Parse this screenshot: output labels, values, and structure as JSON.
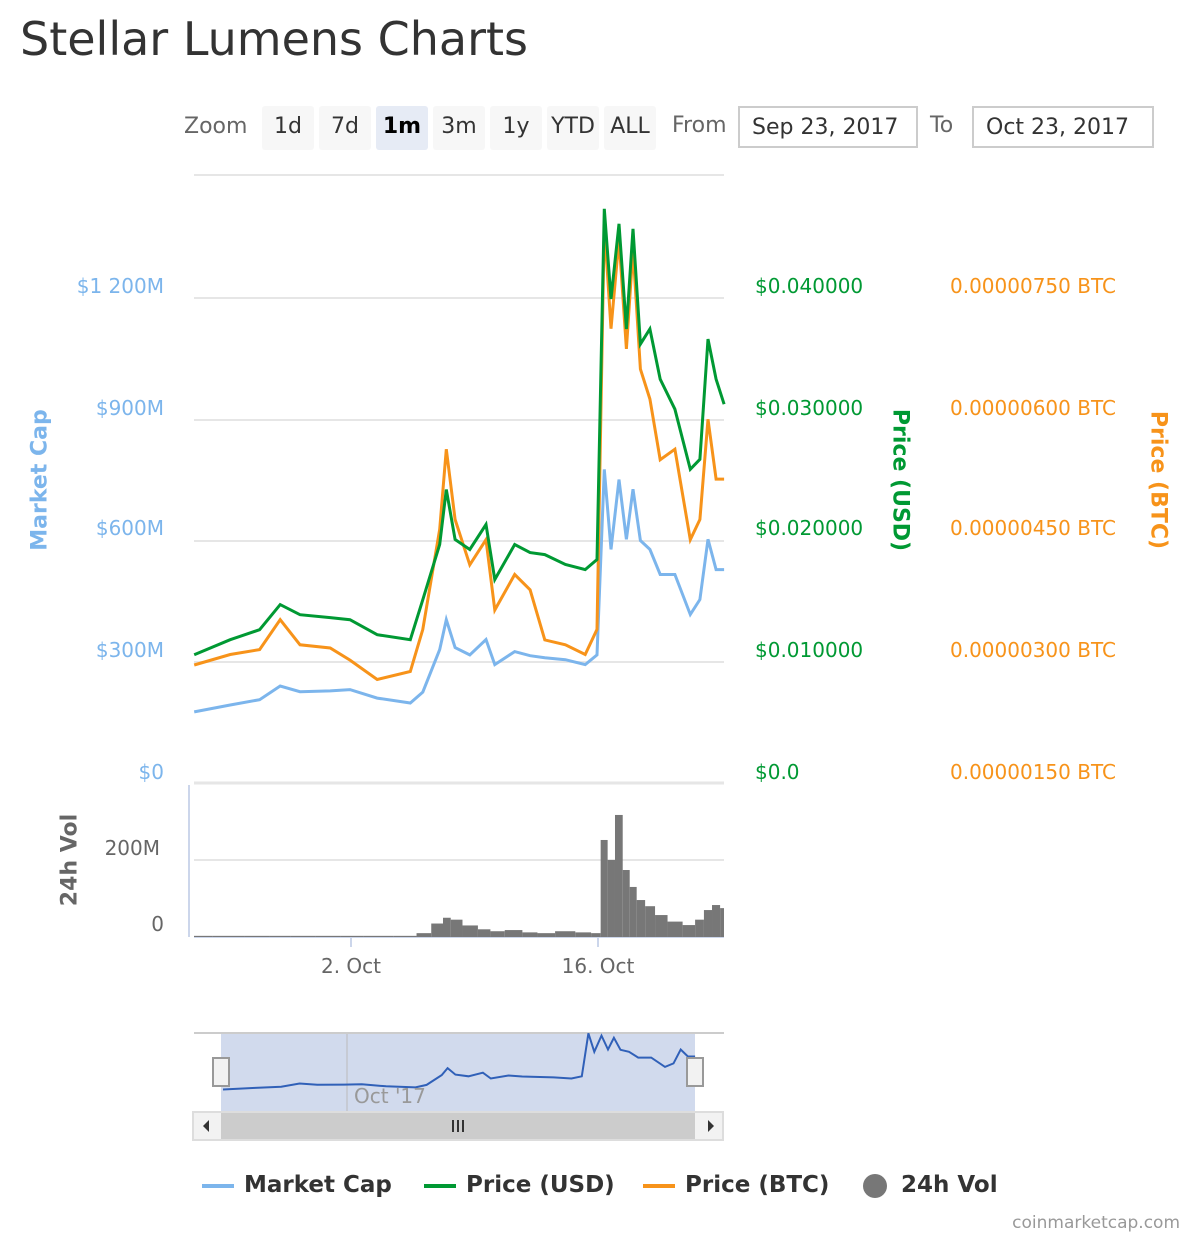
{
  "title": "Stellar Lumens Charts",
  "zoom": {
    "label": "Zoom",
    "buttons": [
      "1d",
      "7d",
      "1m",
      "3m",
      "1y",
      "YTD",
      "ALL"
    ],
    "selected": "1m"
  },
  "range": {
    "from_label": "From",
    "from": "Sep 23, 2017",
    "to_label": "To",
    "to": "Oct 23, 2017"
  },
  "axes": {
    "market_cap": {
      "title": "Market Cap",
      "ticks": [
        "$0",
        "$300M",
        "$600M",
        "$900M",
        "$1 200M"
      ],
      "color": "#7cb5ec"
    },
    "price_usd": {
      "title": "Price (USD)",
      "ticks": [
        "$0.0",
        "$0.010000",
        "$0.020000",
        "$0.030000",
        "$0.040000"
      ],
      "color": "#009933"
    },
    "price_btc": {
      "title": "Price (BTC)",
      "ticks": [
        "0.00000150 BTC",
        "0.00000300 BTC",
        "0.00000450 BTC",
        "0.00000600 BTC",
        "0.00000750 BTC"
      ],
      "color": "#f7931a"
    },
    "volume": {
      "title": "24h Vol",
      "ticks": [
        "0",
        "200M"
      ]
    },
    "x_ticks": [
      "2. Oct",
      "16. Oct"
    ],
    "navigator_label": "Oct '17"
  },
  "legend": [
    "Market Cap",
    "Price (USD)",
    "Price (BTC)",
    "24h Vol"
  ],
  "credits": "coinmarketcap.com",
  "chart_data": {
    "type": "line",
    "xlim": [
      "2017-09-23",
      "2017-10-23"
    ],
    "x": [
      "2017-09-23T03:00",
      "2017-09-25T04:00",
      "2017-09-26T20:00",
      "2017-09-28T00:00",
      "2017-09-29T03:00",
      "2017-09-30T20:00",
      "2017-10-01T23:00",
      "2017-10-03T12:00",
      "2017-10-05T09:00",
      "2017-10-06T02:00",
      "2017-10-07T01:00",
      "2017-10-07T10:00",
      "2017-10-07T22:00",
      "2017-10-08T18:00",
      "2017-10-09T16:00",
      "2017-10-10T04:00",
      "2017-10-11T07:00",
      "2017-10-12T04:00",
      "2017-10-13T00:00",
      "2017-10-14T04:00",
      "2017-10-15T07:00",
      "2017-10-15T23:00",
      "2017-10-16T09:00",
      "2017-10-16T18:00",
      "2017-10-17T05:00",
      "2017-10-17T15:00",
      "2017-10-18T00:00",
      "2017-10-18T10:00",
      "2017-10-18T23:00",
      "2017-10-19T13:00",
      "2017-10-20T09:00",
      "2017-10-21T06:00",
      "2017-10-21T19:00",
      "2017-10-22T06:00",
      "2017-10-22T17:00",
      "2017-10-23T04:00"
    ],
    "series": [
      {
        "name": "Market Cap",
        "unit": "USD millions",
        "color": "#7cb5ec",
        "ylim": [
          0,
          1500
        ],
        "values": [
          176,
          193,
          206,
          240,
          226,
          228,
          231,
          210,
          198,
          225,
          330,
          404,
          335,
          317,
          355,
          293,
          325,
          315,
          310,
          305,
          293,
          317,
          776,
          578,
          751,
          603,
          727,
          600,
          578,
          516,
          516,
          417,
          454,
          603,
          528,
          528
        ]
      },
      {
        "name": "Price (USD)",
        "color": "#009933",
        "ylim": [
          0,
          0.05
        ],
        "values": [
          0.01058,
          0.01182,
          0.01264,
          0.01471,
          0.01388,
          0.01364,
          0.01347,
          0.01223,
          0.01182,
          0.01512,
          0.01967,
          0.02421,
          0.02008,
          0.01926,
          0.02132,
          0.01678,
          0.01967,
          0.019,
          0.01884,
          0.01802,
          0.0176,
          0.01843,
          0.04736,
          0.03992,
          0.04612,
          0.03744,
          0.0457,
          0.0362,
          0.03744,
          0.0333,
          0.03083,
          0.02587,
          0.0267,
          0.03661,
          0.0333,
          0.03124
        ]
      },
      {
        "name": "Price (BTC)",
        "color": "#f7931a",
        "ylim": [
          1.5e-06,
          9e-06
        ],
        "values": [
          2.96e-06,
          3.09e-06,
          3.15e-06,
          3.52e-06,
          3.21e-06,
          3.17e-06,
          3.02e-06,
          2.78e-06,
          2.88e-06,
          3.4e-06,
          4.64e-06,
          5.63e-06,
          4.76e-06,
          4.2e-06,
          4.51e-06,
          3.64e-06,
          4.08e-06,
          3.89e-06,
          3.27e-06,
          3.21e-06,
          3.09e-06,
          3.4e-06,
          8.42e-06,
          7.12e-06,
          8.23e-06,
          6.87e-06,
          8.1e-06,
          6.62e-06,
          6.25e-06,
          5.5e-06,
          5.63e-06,
          4.51e-06,
          4.76e-06,
          6e-06,
          5.26e-06,
          5.26e-06
        ]
      },
      {
        "name": "24h Vol",
        "type": "column",
        "unit": "USD millions",
        "color": "#777777",
        "ylim": [
          0,
          350
        ],
        "values": [
          3,
          3,
          3,
          3,
          3,
          3,
          3,
          3,
          3,
          10,
          35,
          50,
          45,
          30,
          20,
          15,
          18,
          12,
          10,
          15,
          12,
          10,
          252,
          200,
          317,
          174,
          130,
          96,
          80,
          57,
          40,
          31,
          45,
          70,
          83,
          75
        ]
      }
    ]
  }
}
